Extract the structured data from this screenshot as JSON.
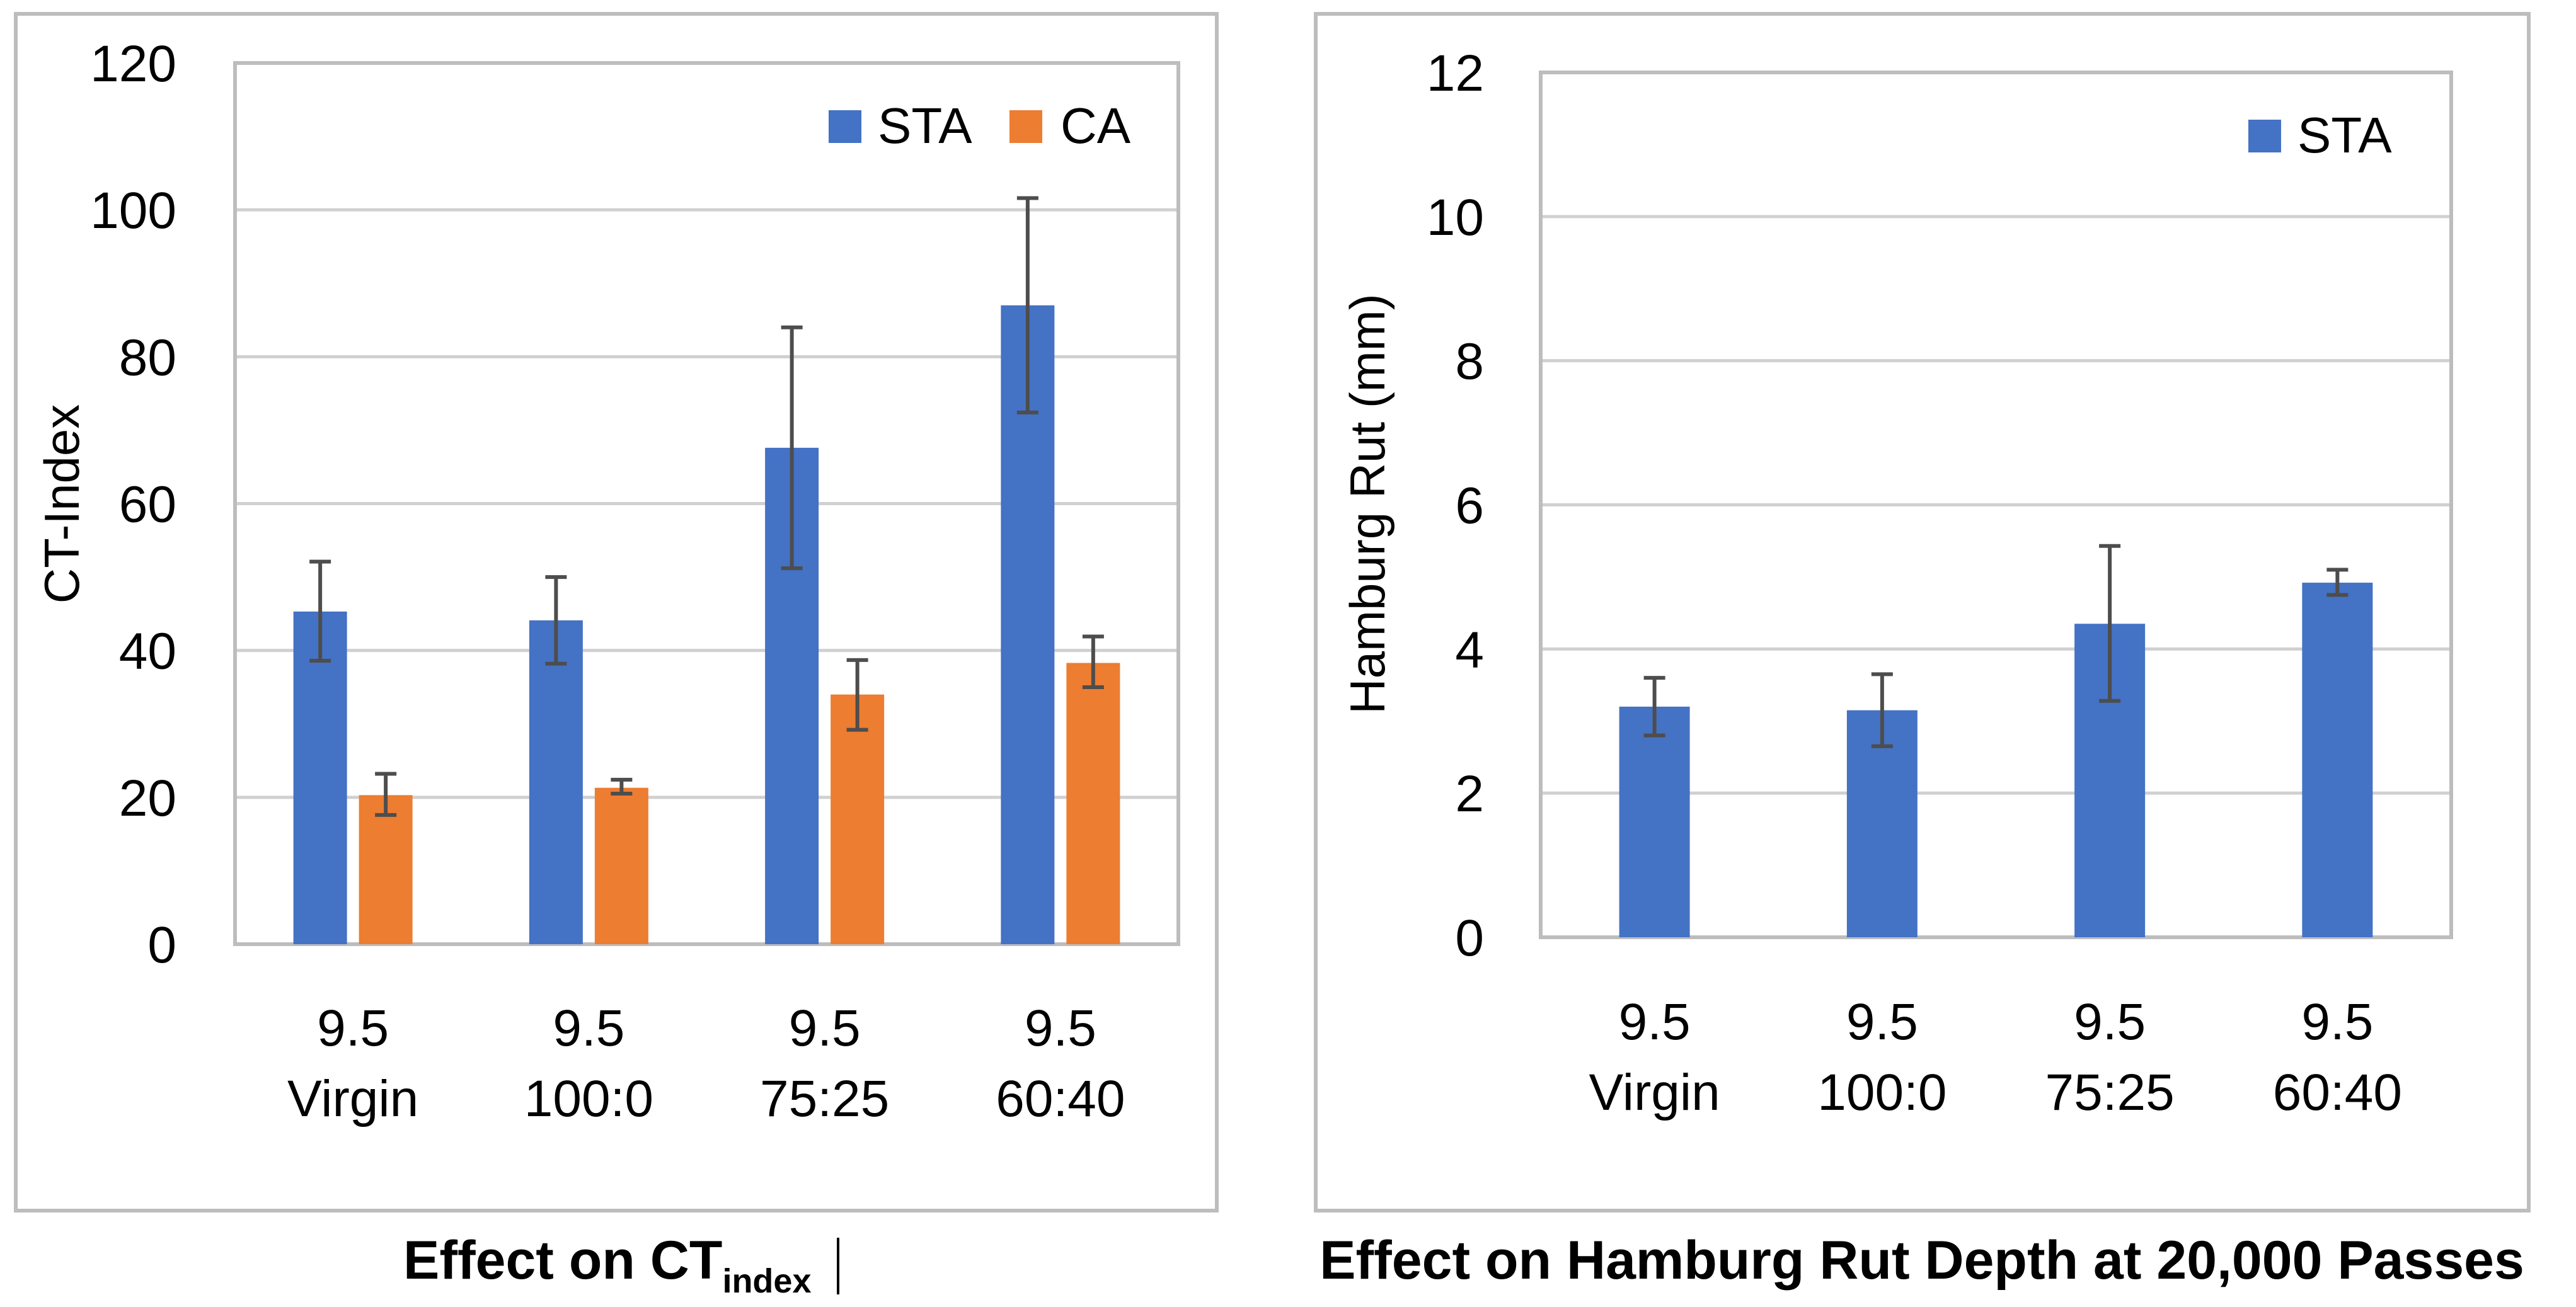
{
  "chart_data": [
    {
      "type": "bar",
      "caption": {
        "main": "Effect on CT",
        "subscript": "index"
      },
      "ylabel": "CT-Index",
      "xlabel": "",
      "ylim": [
        0,
        120
      ],
      "yticks": [
        0,
        20,
        40,
        60,
        80,
        100,
        120
      ],
      "categories": [
        {
          "line1": "9.5",
          "line2": "Virgin"
        },
        {
          "line1": "9.5",
          "line2": "100:0"
        },
        {
          "line1": "9.5",
          "line2": "75:25"
        },
        {
          "line1": "9.5",
          "line2": "60:40"
        }
      ],
      "legend_position": "top-right",
      "series": [
        {
          "name": "STA",
          "color": "#4472c4",
          "values": [
            45.3,
            44.1,
            67.6,
            87.0
          ],
          "err_low": [
            38.6,
            38.2,
            51.2,
            72.4
          ],
          "err_high": [
            52.1,
            50.0,
            84.0,
            101.6
          ]
        },
        {
          "name": "CA",
          "color": "#ed7d31",
          "values": [
            20.3,
            21.3,
            34.0,
            38.3
          ],
          "err_low": [
            17.6,
            20.5,
            29.2,
            35.0
          ],
          "err_high": [
            23.2,
            22.4,
            38.7,
            41.9
          ]
        }
      ]
    },
    {
      "type": "bar",
      "caption": {
        "main": "Effect on Hamburg Rut Depth at 20,000 Passes",
        "subscript": ""
      },
      "ylabel": "Hamburg Rut (mm)",
      "xlabel": "",
      "ylim": [
        0,
        12
      ],
      "yticks": [
        0,
        2,
        4,
        6,
        8,
        10,
        12
      ],
      "categories": [
        {
          "line1": "9.5",
          "line2": "Virgin"
        },
        {
          "line1": "9.5",
          "line2": "100:0"
        },
        {
          "line1": "9.5",
          "line2": "75:25"
        },
        {
          "line1": "9.5",
          "line2": "60:40"
        }
      ],
      "legend_position": "top-right",
      "series": [
        {
          "name": "STA",
          "color": "#4472c4",
          "values": [
            3.2,
            3.15,
            4.35,
            4.92
          ],
          "err_low": [
            2.8,
            2.65,
            3.28,
            4.75
          ],
          "err_high": [
            3.6,
            3.65,
            5.43,
            5.1
          ]
        }
      ]
    }
  ]
}
